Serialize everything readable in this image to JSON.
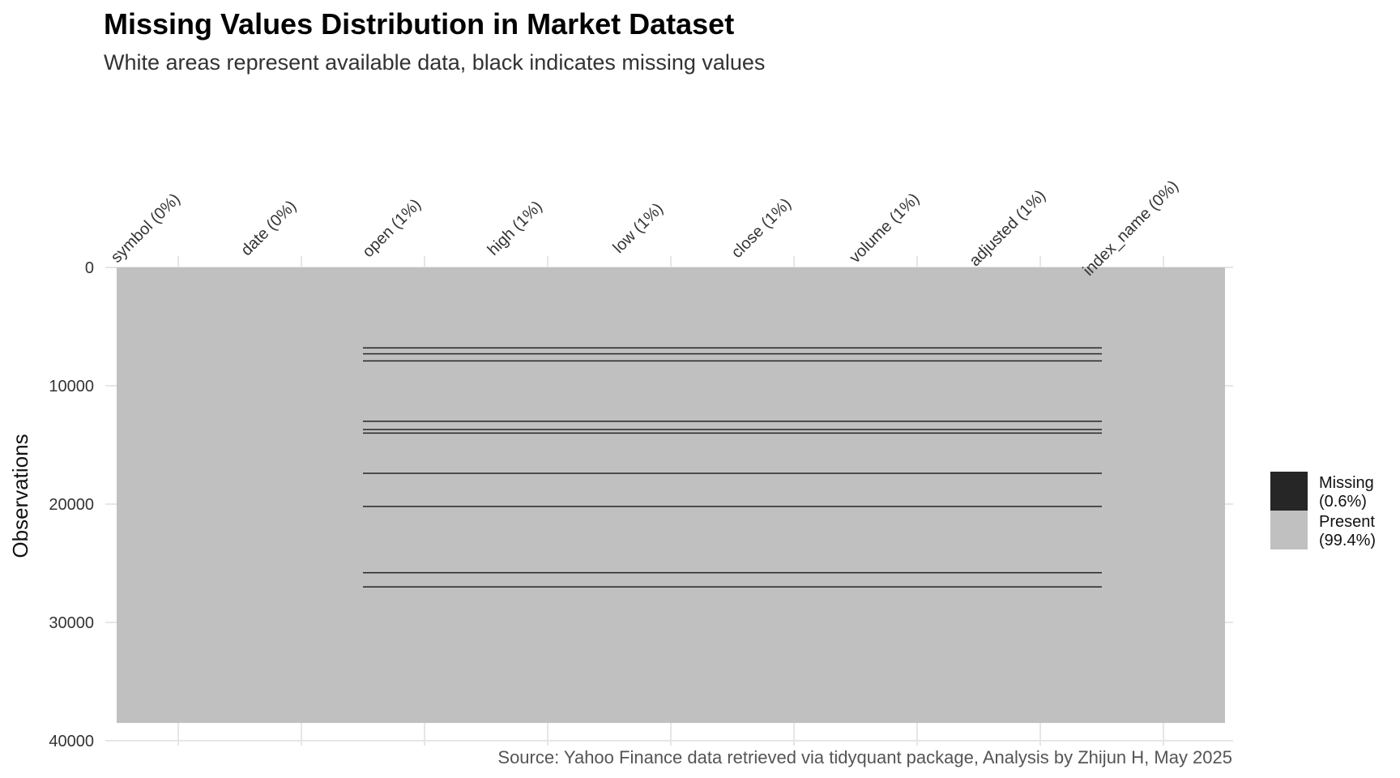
{
  "chart_data": {
    "type": "heatmap",
    "title": "Missing Values Distribution in Market Dataset",
    "subtitle": "White areas represent available data, black indicates missing values",
    "ylabel": "Observations",
    "caption": "Source: Yahoo Finance data retrieved via tidyquant package, Analysis by Zhijun H, May 2025",
    "ylim": [
      0,
      40000
    ],
    "y_ticks": [
      0,
      10000,
      20000,
      30000,
      40000
    ],
    "n_observations": 38500,
    "columns": [
      {
        "label": "symbol (0%)",
        "missing_pct": 0
      },
      {
        "label": "date (0%)",
        "missing_pct": 0
      },
      {
        "label": "open (1%)",
        "missing_pct": 1
      },
      {
        "label": "high (1%)",
        "missing_pct": 1
      },
      {
        "label": "low (1%)",
        "missing_pct": 1
      },
      {
        "label": "close (1%)",
        "missing_pct": 1
      },
      {
        "label": "volume (1%)",
        "missing_pct": 1
      },
      {
        "label": "adjusted (1%)",
        "missing_pct": 1
      },
      {
        "label": "index_name (0%)",
        "missing_pct": 0
      }
    ],
    "missing_rows": [
      6800,
      7300,
      7900,
      13000,
      13700,
      14000,
      17400,
      20200,
      25800,
      27000
    ],
    "missing_columns_first": 2,
    "missing_columns_last": 7,
    "legend": {
      "position": "right",
      "items": [
        {
          "label_line1": "Missing",
          "label_line2": "(0.6%)",
          "color": "#262626"
        },
        {
          "label_line1": "Present",
          "label_line2": "(99.4%)",
          "color": "#c0c0c0"
        }
      ]
    },
    "colors": {
      "present": "#c0c0c0",
      "missing": "#262626",
      "grid": "#e6e6e6"
    }
  }
}
